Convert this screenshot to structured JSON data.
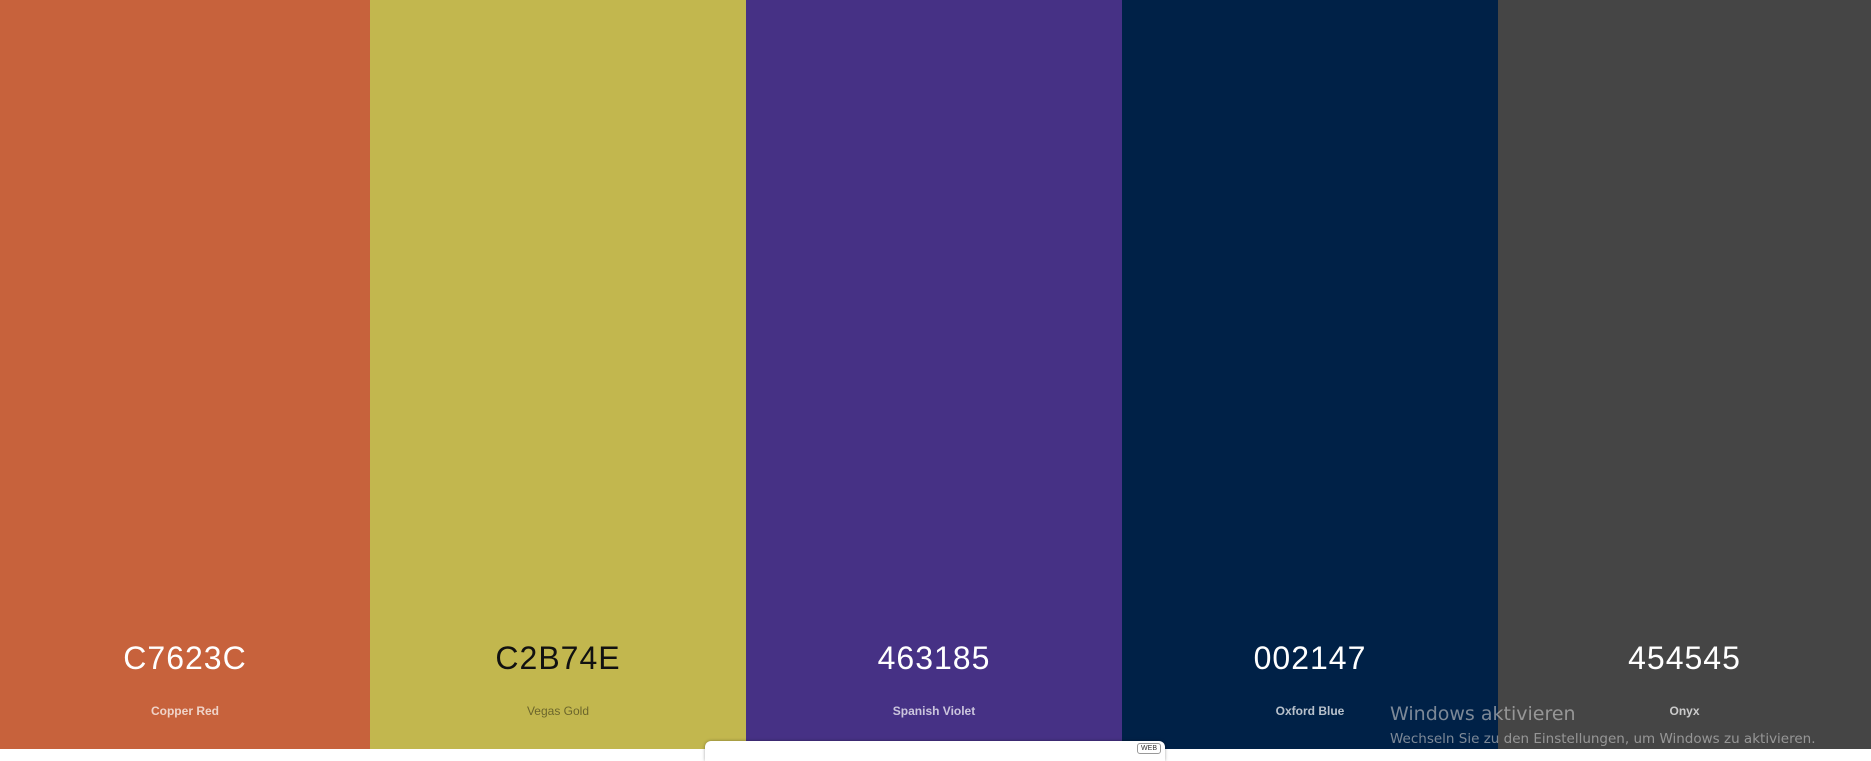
{
  "palette": {
    "colors": [
      {
        "hex": "C7623C",
        "name": "Copper Red",
        "color": "#C7623C",
        "text_theme": "light"
      },
      {
        "hex": "C2B74E",
        "name": "Vegas Gold",
        "color": "#C2B74E",
        "text_theme": "dark"
      },
      {
        "hex": "463185",
        "name": "Spanish Violet",
        "color": "#463185",
        "text_theme": "light"
      },
      {
        "hex": "002147",
        "name": "Oxford Blue",
        "color": "#002147",
        "text_theme": "light"
      },
      {
        "hex": "454545",
        "name": "Onyx",
        "color": "#454545",
        "text_theme": "light"
      }
    ]
  },
  "windows_activation": {
    "title": "Windows aktivieren",
    "subtitle": "Wechseln Sie zu den Einstellungen, um Windows zu aktivieren."
  },
  "bottom_widget": {
    "badge": "WEB"
  }
}
